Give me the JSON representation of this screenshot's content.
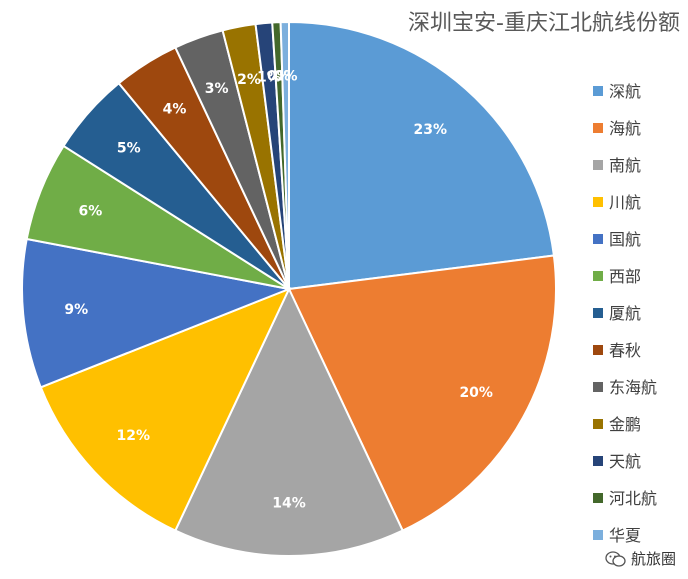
{
  "chart_data": {
    "type": "pie",
    "title": "深圳宝安-重庆江北航线份额",
    "categories": [
      "深航",
      "海航",
      "南航",
      "川航",
      "国航",
      "西部",
      "厦航",
      "春秋",
      "东海航",
      "金鹏",
      "天航",
      "河北航",
      "华夏"
    ],
    "values": [
      23,
      20,
      14,
      12,
      9,
      6,
      5,
      4,
      3,
      2,
      1,
      0.5,
      0.5
    ],
    "data_labels": [
      "23%",
      "20%",
      "14%",
      "12%",
      "9%",
      "6%",
      "5%",
      "4%",
      "3%",
      "2%",
      "1%",
      "0%",
      "0%"
    ],
    "colors": [
      "#5B9BD5",
      "#ED7D31",
      "#A5A5A5",
      "#FFC000",
      "#4472C4",
      "#70AD47",
      "#255E91",
      "#9E480E",
      "#636363",
      "#997300",
      "#264478",
      "#43682B",
      "#7CAFDD"
    ],
    "legend_position": "right"
  },
  "watermark": {
    "text": "航旅圈",
    "icon": "wechat-icon"
  }
}
